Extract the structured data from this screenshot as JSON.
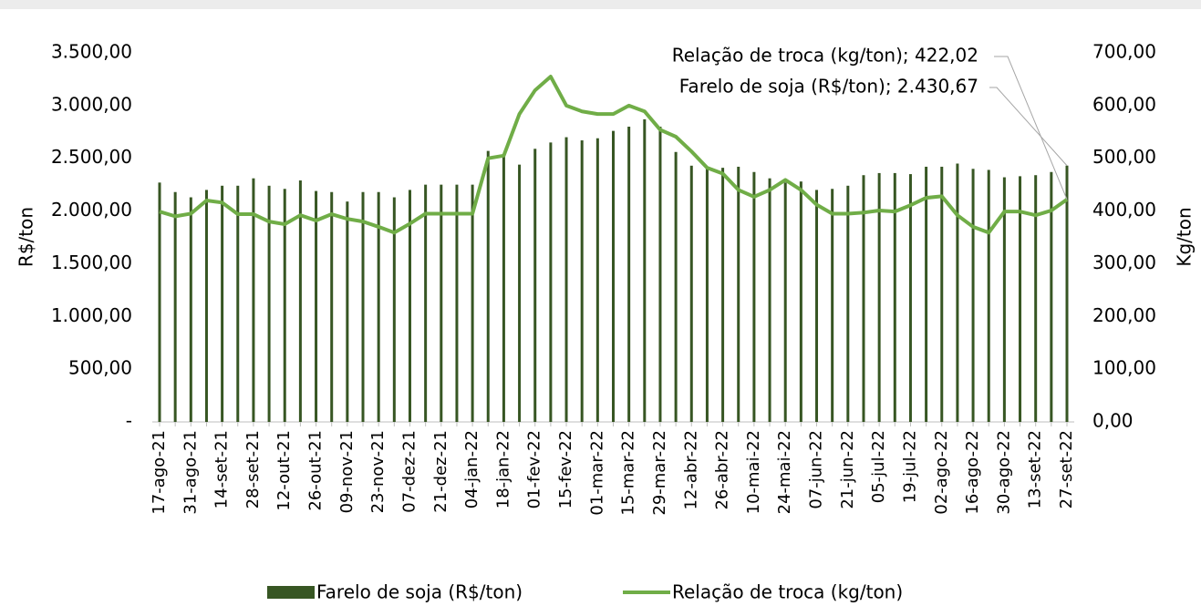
{
  "chart_data": {
    "type": "bar-line",
    "y_label": "R$/ton",
    "y2_label": "Kg/ton",
    "categories": [
      "17-ago-21",
      null,
      "31-ago-21",
      null,
      "14-set-21",
      null,
      "28-set-21",
      null,
      "12-out-21",
      null,
      "26-out-21",
      null,
      "09-nov-21",
      null,
      "23-nov-21",
      null,
      "07-dez-21",
      null,
      "21-dez-21",
      null,
      "04-jan-22",
      null,
      "18-jan-22",
      null,
      "01-fev-22",
      null,
      "15-fev-22",
      null,
      "01-mar-22",
      null,
      "15-mar-22",
      null,
      "29-mar-22",
      null,
      "12-abr-22",
      null,
      "26-abr-22",
      null,
      "10-mai-22",
      null,
      "24-mai-22",
      null,
      "07-jun-22",
      null,
      "21-jun-22",
      null,
      "05-jul-22",
      null,
      "19-jul-22",
      null,
      "02-ago-22",
      null,
      "16-ago-22",
      null,
      "30-ago-22",
      null,
      "13-set-22",
      null,
      "27-set-22"
    ],
    "series": [
      {
        "name": "Farelo de soja (R$/ton)",
        "color": "#375623",
        "kind": "bar",
        "axis": "y",
        "values": [
          2270,
          2180,
          2130,
          2200,
          2240,
          2240,
          2310,
          2240,
          2210,
          2290,
          2190,
          2180,
          2090,
          2180,
          2180,
          2130,
          2200,
          2250,
          2250,
          2250,
          2250,
          2570,
          2520,
          2440,
          2590,
          2650,
          2700,
          2670,
          2690,
          2760,
          2800,
          2870,
          2800,
          2560,
          2430,
          2420,
          2410,
          2420,
          2370,
          2310,
          2270,
          2280,
          2200,
          2210,
          2240,
          2340,
          2360,
          2360,
          2350,
          2420,
          2420,
          2450,
          2400,
          2390,
          2320,
          2330,
          2340,
          2370,
          2430.67
        ]
      },
      {
        "name": "Relação de troca (kg/ton)",
        "color": "#70ad47",
        "kind": "line",
        "axis": "y2",
        "values": [
          399,
          390,
          395,
          420,
          416,
          394,
          394,
          380,
          375,
          392,
          382,
          394,
          385,
          380,
          370,
          359,
          376,
          395,
          395,
          395,
          395,
          500,
          505,
          584,
          629,
          655,
          600,
          589,
          584,
          584,
          600,
          589,
          554,
          541,
          513,
          482,
          471,
          440,
          427,
          440,
          459,
          440,
          412,
          395,
          395,
          397,
          401,
          399,
          411,
          425,
          428,
          392,
          370,
          359,
          399,
          399,
          392,
          401,
          422.02
        ]
      }
    ],
    "ylim": [
      0,
      3500
    ],
    "yticks": [
      {
        "value": 0,
        "label": "-"
      },
      {
        "value": 500,
        "label": "500,00"
      },
      {
        "value": 1000,
        "label": "1.000,00"
      },
      {
        "value": 1500,
        "label": "1.500,00"
      },
      {
        "value": 2000,
        "label": "2.000,00"
      },
      {
        "value": 2500,
        "label": "2.500,00"
      },
      {
        "value": 3000,
        "label": "3.000,00"
      },
      {
        "value": 3500,
        "label": "3.500,00"
      }
    ],
    "y2lim": [
      0,
      700
    ],
    "y2ticks": [
      {
        "value": 0,
        "label": "0,00"
      },
      {
        "value": 100,
        "label": "100,00"
      },
      {
        "value": 200,
        "label": "200,00"
      },
      {
        "value": 300,
        "label": "300,00"
      },
      {
        "value": 400,
        "label": "400,00"
      },
      {
        "value": 500,
        "label": "500,00"
      },
      {
        "value": 600,
        "label": "600,00"
      },
      {
        "value": 700,
        "label": "700,00"
      }
    ],
    "annotations": [
      "Relação de troca (kg/ton); 422,02",
      "Farelo de soja (R$/ton); 2.430,67"
    ],
    "legend": "bottom"
  }
}
